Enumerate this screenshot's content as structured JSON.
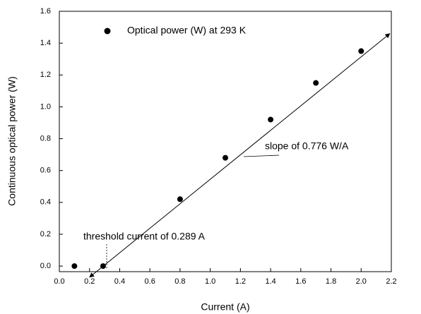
{
  "chart_data": {
    "type": "scatter",
    "xlabel": "Current (A)",
    "ylabel": "Continuous optical power (W)",
    "series": [
      {
        "name": "Optical power (W) at 293 K",
        "color": "#000000",
        "x": [
          0.1,
          0.29,
          0.8,
          1.1,
          1.4,
          1.7,
          2.0
        ],
        "values": [
          0,
          0,
          0.42,
          0.68,
          0.92,
          1.15,
          1.35
        ]
      }
    ],
    "fit_line": {
      "x": [
        0.2,
        2.19
      ],
      "y": [
        -0.07,
        1.46
      ]
    },
    "annotations": [
      {
        "text": "slope of 0.776 W/A"
      },
      {
        "text": "threshold current of 0.289 A"
      }
    ],
    "xlim": [
      0,
      2.2
    ],
    "xticks": [
      {
        "value": 0,
        "label": "0.0"
      },
      0.2,
      0.4,
      0.6,
      0.8,
      {
        "value": 1,
        "label": "1.0"
      },
      1.2,
      1.4,
      1.6,
      1.8,
      {
        "value": 2,
        "label": "2.0"
      },
      2.2
    ],
    "ylim": [
      -0.035,
      1.6
    ],
    "yticks": [
      {
        "value": 0,
        "label": "0.0"
      },
      0.2,
      0.4,
      0.6,
      0.8,
      {
        "value": 1,
        "label": "1.0"
      },
      1.2,
      1.4,
      1.6
    ],
    "legend": "upper left"
  }
}
